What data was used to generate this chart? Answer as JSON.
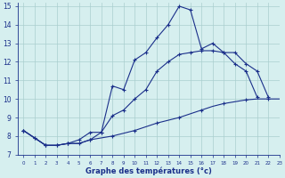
{
  "x_hours": [
    0,
    1,
    2,
    3,
    4,
    5,
    6,
    7,
    8,
    9,
    10,
    11,
    12,
    13,
    14,
    15,
    16,
    17,
    18,
    19,
    20,
    21,
    22,
    23
  ],
  "line1_y": [
    8.3,
    7.9,
    7.5,
    7.5,
    7.6,
    7.6,
    7.8,
    8.2,
    10.7,
    10.5,
    12.1,
    12.5,
    13.3,
    14.0,
    15.0,
    14.8,
    12.7,
    13.0,
    12.5,
    11.9,
    11.5,
    10.1,
    null,
    null
  ],
  "line2_y": [
    8.3,
    7.9,
    7.5,
    7.5,
    7.6,
    7.8,
    8.2,
    8.2,
    9.1,
    9.4,
    10.0,
    10.5,
    11.5,
    12.0,
    12.4,
    12.5,
    12.6,
    12.6,
    12.5,
    12.5,
    11.9,
    11.5,
    10.1,
    null
  ],
  "line3_y": [
    8.3,
    7.9,
    7.5,
    7.5,
    7.6,
    7.6,
    7.8,
    7.9,
    8.0,
    8.15,
    8.3,
    8.5,
    8.7,
    8.85,
    9.0,
    9.2,
    9.4,
    9.6,
    9.75,
    9.85,
    9.95,
    10.0,
    10.0,
    10.0
  ],
  "line_color": "#1a2f8a",
  "bg_color": "#d6efef",
  "grid_color": "#aacece",
  "xlabel": "Graphe des températures (°c)",
  "xlim": [
    -0.5,
    23
  ],
  "ylim": [
    7,
    15.2
  ],
  "yticks": [
    7,
    8,
    9,
    10,
    11,
    12,
    13,
    14,
    15
  ],
  "xticks": [
    0,
    1,
    2,
    3,
    4,
    5,
    6,
    7,
    8,
    9,
    10,
    11,
    12,
    13,
    14,
    15,
    16,
    17,
    18,
    19,
    20,
    21,
    22,
    23
  ],
  "marker_size": 2.5,
  "lw": 0.8
}
